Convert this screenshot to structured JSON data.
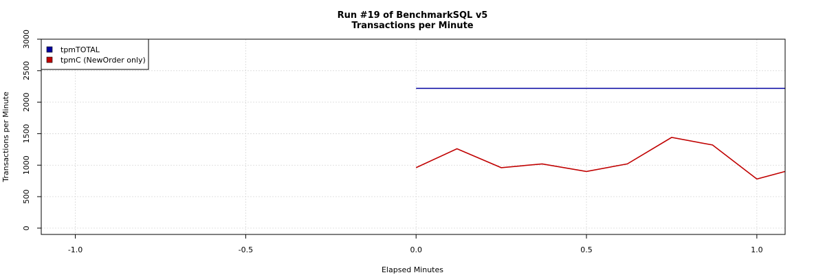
{
  "chart_data": {
    "type": "line",
    "title": "Run #19 of BenchmarkSQL v5",
    "subtitle": "Transactions per Minute",
    "xlabel": "Elapsed Minutes",
    "ylabel": "Transactions per Minute",
    "xlim": [
      -1.1,
      1.083
    ],
    "ylim": [
      -100,
      3000
    ],
    "xticks": [
      -1.0,
      -0.5,
      0.0,
      0.5,
      1.0
    ],
    "xtick_labels": [
      "-1.0",
      "-0.5",
      "0.0",
      "0.5",
      "1.0"
    ],
    "yticks": [
      0,
      500,
      1000,
      1500,
      2000,
      2500,
      3000
    ],
    "ytick_labels": [
      "0",
      "500",
      "1000",
      "1500",
      "2000",
      "2500",
      "3000"
    ],
    "grid": true,
    "legend_position": "top-left",
    "series": [
      {
        "name": "tpmTOTAL",
        "color": "#0000a0",
        "x": [
          0.0,
          1.083
        ],
        "y": [
          2220,
          2220
        ]
      },
      {
        "name": "tpmC (NewOrder only)",
        "color": "#c00000",
        "x": [
          0.0,
          0.12,
          0.25,
          0.37,
          0.5,
          0.62,
          0.75,
          0.87,
          1.0,
          1.083
        ],
        "y": [
          960,
          1260,
          960,
          1020,
          900,
          1020,
          1440,
          1320,
          780,
          900
        ]
      }
    ]
  }
}
